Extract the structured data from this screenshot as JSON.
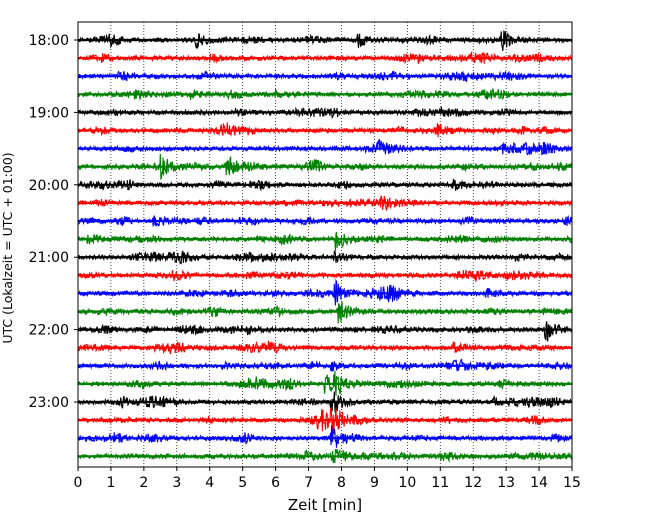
{
  "chart_data": {
    "type": "line",
    "title": "",
    "xlabel": "Zeit  [min]",
    "ylabel": "UTC (Lokalzeit = UTC + 01:00)",
    "xlim": [
      0,
      15
    ],
    "x_ticks": [
      0,
      1,
      2,
      3,
      4,
      5,
      6,
      7,
      8,
      9,
      10,
      11,
      12,
      13,
      14,
      15
    ],
    "x_tick_labels": [
      "0",
      "1",
      "2",
      "3",
      "4",
      "5",
      "6",
      "7",
      "8",
      "9",
      "10",
      "11",
      "12",
      "13",
      "14",
      "15"
    ],
    "y_tick_labels": [
      "18:00",
      "19:00",
      "20:00",
      "21:00",
      "22:00",
      "23:00"
    ],
    "row_interval_min": 15,
    "grid": "vertical dotted at each minute",
    "legend": "none",
    "trace_colors": [
      "#000000",
      "#ff0000",
      "#0000ff",
      "#008000"
    ],
    "series": [
      {
        "start": "18:00",
        "color": "#000000",
        "events": [
          {
            "t": 3.6,
            "amp": 0.6
          },
          {
            "t": 8.5,
            "amp": 0.8
          },
          {
            "t": 12.85,
            "amp": 1.2
          }
        ]
      },
      {
        "start": "18:15",
        "color": "#ff0000",
        "events": [
          {
            "t": 4.0,
            "amp": 0.45
          },
          {
            "t": 10.3,
            "amp": 0.4
          }
        ]
      },
      {
        "start": "18:30",
        "color": "#0000ff",
        "events": [
          {
            "t": 1.2,
            "amp": 0.4
          },
          {
            "t": 9.5,
            "amp": 0.35
          }
        ]
      },
      {
        "start": "18:45",
        "color": "#008000",
        "events": [
          {
            "t": 3.4,
            "amp": 0.55
          },
          {
            "t": 6.0,
            "amp": 0.4
          }
        ]
      },
      {
        "start": "19:00",
        "color": "#000000",
        "events": [
          {
            "t": 4.8,
            "amp": 0.4
          },
          {
            "t": 11.0,
            "amp": 0.4
          }
        ]
      },
      {
        "start": "19:15",
        "color": "#ff0000",
        "events": [
          {
            "t": 10.9,
            "amp": 0.5
          },
          {
            "t": 14.0,
            "amp": 0.35
          }
        ]
      },
      {
        "start": "19:30",
        "color": "#0000ff",
        "events": [
          {
            "t": 9.1,
            "amp": 0.6
          },
          {
            "t": 12.9,
            "amp": 0.35
          }
        ]
      },
      {
        "start": "19:45",
        "color": "#008000",
        "events": [
          {
            "t": 2.5,
            "amp": 1.4
          },
          {
            "t": 4.5,
            "amp": 1.3
          },
          {
            "t": 11.7,
            "amp": 0.4
          }
        ]
      },
      {
        "start": "20:00",
        "color": "#000000",
        "events": [
          {
            "t": 4.1,
            "amp": 0.5
          },
          {
            "t": 11.4,
            "amp": 0.6
          }
        ]
      },
      {
        "start": "20:15",
        "color": "#ff0000",
        "events": [
          {
            "t": 9.2,
            "amp": 0.5
          }
        ]
      },
      {
        "start": "20:30",
        "color": "#0000ff",
        "events": [
          {
            "t": 2.3,
            "amp": 0.5
          },
          {
            "t": 14.8,
            "amp": 0.4
          }
        ]
      },
      {
        "start": "20:45",
        "color": "#008000",
        "events": [
          {
            "t": 0.3,
            "amp": 0.6
          },
          {
            "t": 6.0,
            "amp": 0.6
          },
          {
            "t": 7.8,
            "amp": 1.6
          }
        ]
      },
      {
        "start": "21:00",
        "color": "#000000",
        "events": [
          {
            "t": 7.8,
            "amp": 0.7
          },
          {
            "t": 13.3,
            "amp": 0.35
          }
        ]
      },
      {
        "start": "21:15",
        "color": "#ff0000",
        "events": [
          {
            "t": 2.8,
            "amp": 0.45
          },
          {
            "t": 12.1,
            "amp": 0.4
          }
        ]
      },
      {
        "start": "21:30",
        "color": "#0000ff",
        "events": [
          {
            "t": 7.8,
            "amp": 1.3
          },
          {
            "t": 12.4,
            "amp": 0.55
          }
        ]
      },
      {
        "start": "21:45",
        "color": "#008000",
        "events": [
          {
            "t": 7.9,
            "amp": 1.5
          },
          {
            "t": 14.1,
            "amp": 0.35
          }
        ]
      },
      {
        "start": "22:00",
        "color": "#000000",
        "events": [
          {
            "t": 5.1,
            "amp": 0.4
          },
          {
            "t": 14.2,
            "amp": 1.3
          }
        ]
      },
      {
        "start": "22:15",
        "color": "#ff0000",
        "events": [
          {
            "t": 5.8,
            "amp": 0.5
          },
          {
            "t": 11.4,
            "amp": 0.45
          }
        ]
      },
      {
        "start": "22:30",
        "color": "#0000ff",
        "events": [
          {
            "t": 7.7,
            "amp": 0.5
          },
          {
            "t": 4.4,
            "amp": 0.35
          }
        ]
      },
      {
        "start": "22:45",
        "color": "#008000",
        "events": [
          {
            "t": 7.5,
            "amp": 1.2
          },
          {
            "t": 7.8,
            "amp": 1.4
          },
          {
            "t": 12.8,
            "amp": 0.5
          }
        ]
      },
      {
        "start": "23:00",
        "color": "#000000",
        "events": [
          {
            "t": 7.7,
            "amp": 1.6
          },
          {
            "t": 1.3,
            "amp": 0.5
          },
          {
            "t": 12.6,
            "amp": 0.4
          }
        ]
      },
      {
        "start": "23:15",
        "color": "#ff0000",
        "events": [
          {
            "t": 7.3,
            "amp": 0.9
          },
          {
            "t": 7.7,
            "amp": 1.2
          }
        ]
      },
      {
        "start": "23:30",
        "color": "#0000ff",
        "events": [
          {
            "t": 7.7,
            "amp": 1.2
          },
          {
            "t": 14.4,
            "amp": 0.5
          }
        ]
      },
      {
        "start": "23:45",
        "color": "#008000",
        "events": [
          {
            "t": 6.9,
            "amp": 0.5
          },
          {
            "t": 7.7,
            "amp": 0.6
          }
        ]
      }
    ]
  }
}
